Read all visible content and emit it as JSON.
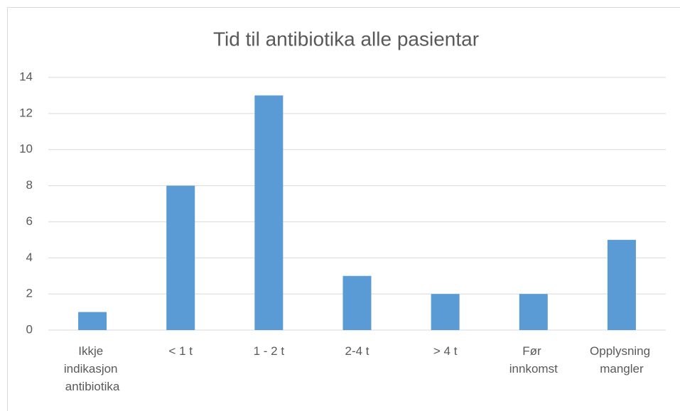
{
  "chart_data": {
    "type": "bar",
    "title": "Tid til antibiotika alle pasientar",
    "categories": [
      "Ikkje indikasjon antibiotika",
      "< 1 t",
      "1 - 2 t",
      "2-4 t",
      "> 4 t",
      "Før innkomst",
      "Opplysning mangler"
    ],
    "values": [
      1,
      8,
      13,
      3,
      2,
      2,
      5
    ],
    "color": "#5b9bd5",
    "ylim": [
      0,
      14
    ],
    "yticks": [
      0,
      2,
      4,
      6,
      8,
      10,
      12,
      14
    ],
    "grid": true
  }
}
